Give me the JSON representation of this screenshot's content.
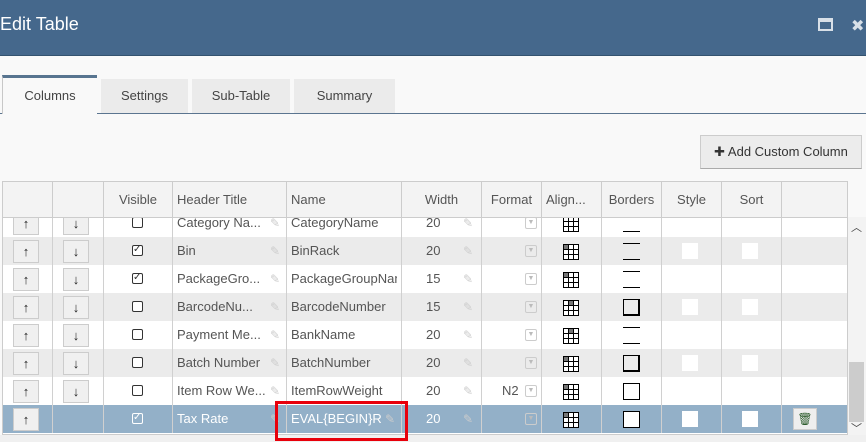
{
  "window": {
    "title": "Edit Table",
    "maximize_icon": "window-maximize-icon",
    "close_icon": "close-icon",
    "close_glyph": "✖"
  },
  "tabs": [
    {
      "label": "Columns",
      "active": true
    },
    {
      "label": "Settings"
    },
    {
      "label": "Sub-Table"
    },
    {
      "label": "Summary"
    }
  ],
  "toolbar": {
    "add_custom_column": "✚ Add Custom Column"
  },
  "grid": {
    "headers": [
      "",
      "",
      "Visible",
      "Header Title",
      "Name",
      "Width",
      "Format",
      "Align...",
      "Borders",
      "Style",
      "Sort",
      ""
    ],
    "rows": [
      {
        "visible": false,
        "header_title": "Category Na...",
        "name": "CategoryName",
        "width": "20",
        "format": "",
        "align_cell": -1,
        "borders": "bottom",
        "style_sort": false,
        "down": true,
        "delete": false,
        "selected": false
      },
      {
        "visible": true,
        "header_title": "Bin",
        "name": "BinRack",
        "width": "20",
        "format": "",
        "align_cell": 0,
        "borders": "tb",
        "style_sort": true,
        "down": true,
        "delete": false,
        "selected": false
      },
      {
        "visible": true,
        "header_title": "PackageGro...",
        "name": "PackageGroupName",
        "width": "15",
        "format": "",
        "align_cell": 0,
        "borders": "tb",
        "style_sort": false,
        "down": true,
        "delete": false,
        "selected": false
      },
      {
        "visible": false,
        "header_title": "BarcodeNu...",
        "name": "BarcodeNumber",
        "width": "15",
        "format": "",
        "align_cell": 1,
        "borders": "box",
        "style_sort": true,
        "down": true,
        "delete": false,
        "selected": false
      },
      {
        "visible": false,
        "header_title": "Payment Me...",
        "name": "BankName",
        "width": "20",
        "format": "",
        "align_cell": 1,
        "borders": "tb",
        "style_sort": false,
        "down": true,
        "delete": false,
        "selected": false
      },
      {
        "visible": false,
        "header_title": "Batch Number",
        "name": "BatchNumber",
        "width": "20",
        "format": "",
        "align_cell": 0,
        "borders": "box",
        "style_sort": true,
        "down": true,
        "delete": false,
        "selected": false
      },
      {
        "visible": false,
        "header_title": "Item Row We...",
        "name": "ItemRowWeight",
        "width": "20",
        "format": "N2",
        "align_cell": 0,
        "borders": "full",
        "style_sort": false,
        "down": true,
        "delete": false,
        "selected": false
      },
      {
        "visible": true,
        "header_title": "Tax Rate",
        "name": "EVAL{BEGIN}ROUND",
        "width": "20",
        "format": "",
        "align_cell": 0,
        "borders": "full",
        "style_sort": true,
        "down": false,
        "delete": true,
        "selected": true
      }
    ]
  },
  "colors": {
    "titlebar": "#45688c",
    "selected_row": "#93b0c8",
    "highlight": "#e8000b"
  }
}
